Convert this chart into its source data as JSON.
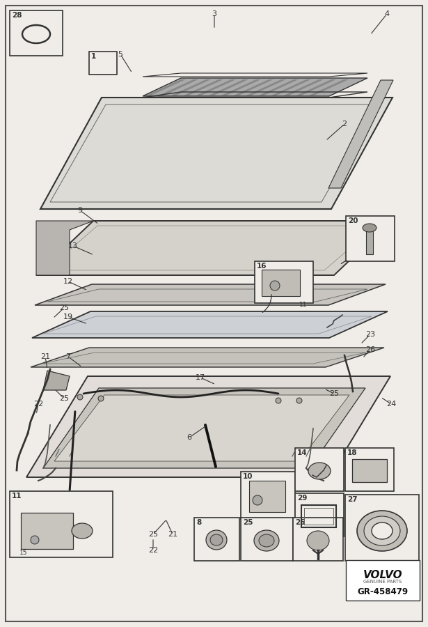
{
  "bg_color": "#f0ede8",
  "border_color": "#555555",
  "line_color": "#333333",
  "volvo_text": "VOLVO",
  "genuine_parts": "GENUINE PARTS",
  "part_code": "GR-458479"
}
